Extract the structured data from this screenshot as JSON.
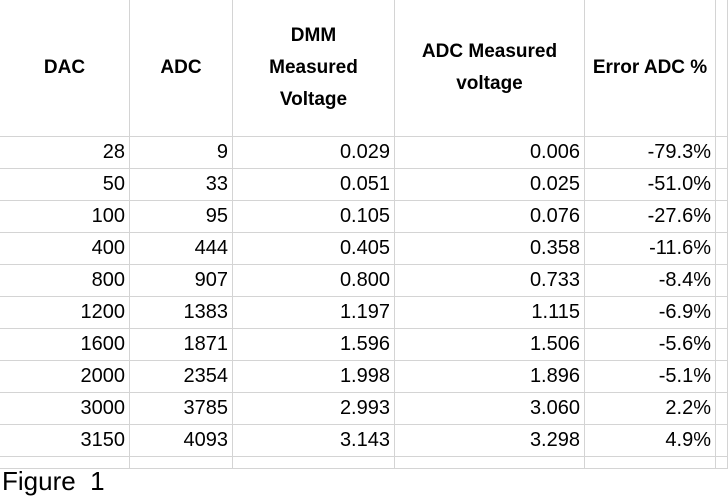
{
  "table": {
    "header": [
      [
        "DAC"
      ],
      [
        "ADC"
      ],
      [
        "DMM",
        "Measured",
        "Voltage"
      ],
      [
        "ADC Measured",
        "voltage"
      ],
      [
        "Error ADC %"
      ]
    ],
    "rows": [
      [
        "28",
        "9",
        "0.029",
        "0.006",
        "-79.3%"
      ],
      [
        "50",
        "33",
        "0.051",
        "0.025",
        "-51.0%"
      ],
      [
        "100",
        "95",
        "0.105",
        "0.076",
        "-27.6%"
      ],
      [
        "400",
        "444",
        "0.405",
        "0.358",
        "-11.6%"
      ],
      [
        "800",
        "907",
        "0.800",
        "0.733",
        "-8.4%"
      ],
      [
        "1200",
        "1383",
        "1.197",
        "1.115",
        "-6.9%"
      ],
      [
        "1600",
        "1871",
        "1.596",
        "1.506",
        "-5.6%"
      ],
      [
        "2000",
        "2354",
        "1.998",
        "1.896",
        "-5.1%"
      ],
      [
        "3000",
        "3785",
        "2.993",
        "3.060",
        "2.2%"
      ],
      [
        "3150",
        "4093",
        "3.143",
        "3.298",
        "4.9%"
      ]
    ]
  },
  "caption": "Figure  1"
}
